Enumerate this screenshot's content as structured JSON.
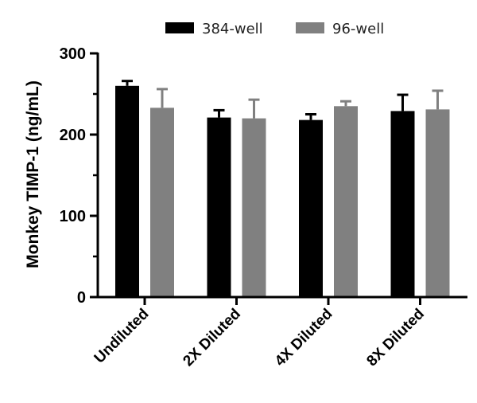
{
  "chart_data": {
    "type": "bar",
    "title": "",
    "xlabel": "",
    "ylabel": "Monkey TIMP-1 (ng/mL)",
    "ylim": [
      0,
      300
    ],
    "yticks": [
      0,
      100,
      200,
      300
    ],
    "categories": [
      "Undiluted",
      "2X Diluted",
      "4X Diluted",
      "8X Diluted"
    ],
    "series": [
      {
        "name": "384-well",
        "color": "#000000",
        "values": [
          260,
          221,
          218,
          229
        ],
        "errors": [
          6,
          9,
          7,
          20
        ]
      },
      {
        "name": "96-well",
        "color": "#808080",
        "values": [
          233,
          220,
          235,
          231
        ],
        "errors": [
          23,
          23,
          6,
          23
        ]
      }
    ],
    "legend": "top"
  }
}
